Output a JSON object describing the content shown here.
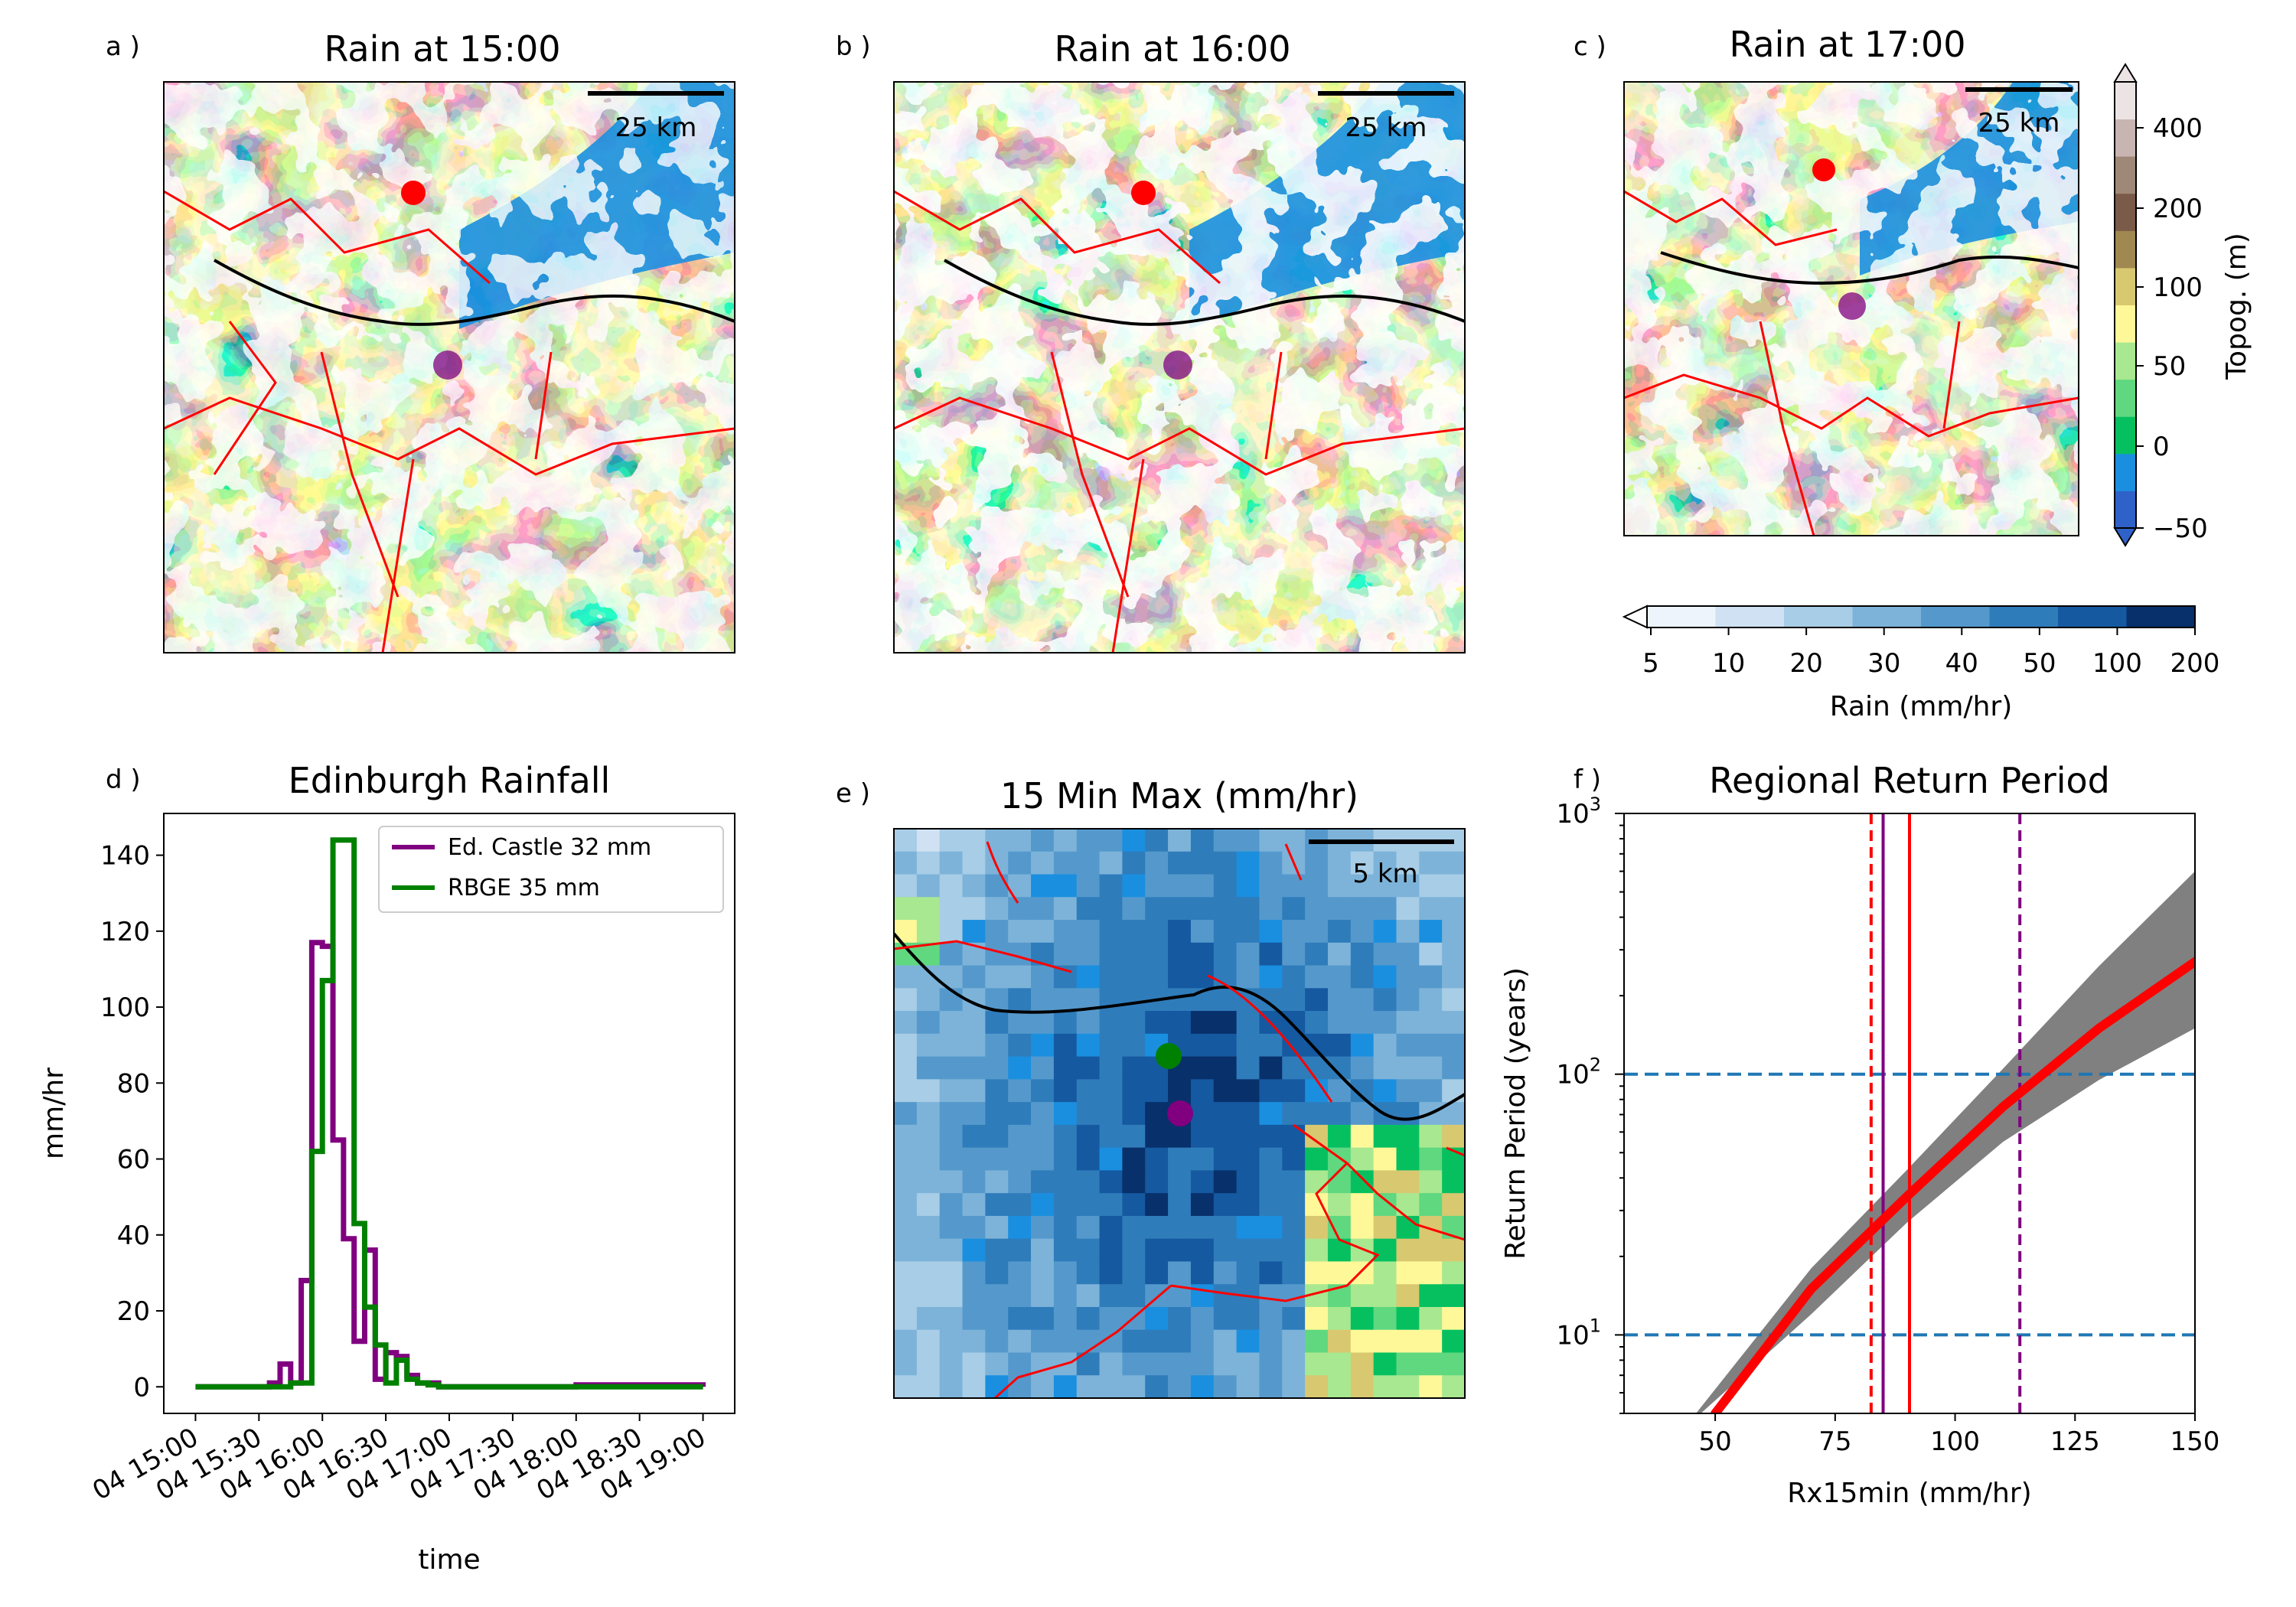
{
  "panels": [
    {
      "id": "a",
      "letter": "a )",
      "title": "Rain at 15:00",
      "scalebar": "25 km"
    },
    {
      "id": "b",
      "letter": "b )",
      "title": "Rain at 16:00",
      "scalebar": "25 km"
    },
    {
      "id": "c",
      "letter": "c )",
      "title": "Rain at 17:00",
      "scalebar": "25 km"
    },
    {
      "id": "d",
      "letter": "d )",
      "title": "Edinburgh Rainfall"
    },
    {
      "id": "e",
      "letter": "e )",
      "title": "15 Min Max (mm/hr)",
      "scalebar": "5 km"
    },
    {
      "id": "f",
      "letter": "f )",
      "title": "Regional Return Period"
    }
  ],
  "colors": {
    "purple": "#800080",
    "green": "#008000",
    "red": "#ff0000",
    "blue_dash": "#1f77b4",
    "band": "#808080",
    "coast": "#000000"
  },
  "topo_colorbar": {
    "label": "Topog. (m)",
    "ticks": [
      "400",
      "200",
      "100",
      "50",
      "0",
      "−50"
    ],
    "colors": [
      "#2f62c8",
      "#1a8fe0",
      "#06c060",
      "#5fd880",
      "#a8e890",
      "#fff898",
      "#d8c870",
      "#a08850",
      "#7a5a48",
      "#a08878",
      "#c8b4b0",
      "#ece4e4"
    ]
  },
  "rain_colorbar": {
    "label": "Rain (mm/hr)",
    "ticks": [
      "5",
      "10",
      "20",
      "30",
      "40",
      "50",
      "100",
      "200"
    ],
    "colors": [
      "#eef4fb",
      "#cfe1f2",
      "#a8cde6",
      "#7db3d9",
      "#5599cc",
      "#2f7cbb",
      "#1559a0",
      "#08306b"
    ]
  },
  "chart_data": [
    {
      "type": "line",
      "panel": "d",
      "title": "Edinburgh Rainfall",
      "xlabel": "time",
      "ylabel": "mm/hr",
      "ylim": [
        -7,
        151
      ],
      "yticks": [
        0,
        20,
        40,
        60,
        80,
        100,
        120,
        140
      ],
      "xticks": [
        "04 15:00",
        "04 15:30",
        "04 16:00",
        "04 16:30",
        "04 17:00",
        "04 17:30",
        "04 18:00",
        "04 18:30",
        "04 19:00"
      ],
      "x_unit": "minutes after 04 15:00",
      "xlim": [
        -15,
        255
      ],
      "legend_position": "top-right",
      "series": [
        {
          "name": "Ed. Castle  32 mm",
          "color": "#800080",
          "x": [
            0,
            30,
            35,
            40,
            45,
            50,
            55,
            60,
            65,
            70,
            75,
            80,
            85,
            90,
            95,
            100,
            105,
            110,
            115,
            120,
            125,
            180,
            240
          ],
          "y": [
            0,
            0,
            1,
            6,
            1,
            28,
            117,
            116,
            65,
            39,
            12,
            36,
            2,
            9,
            8,
            3,
            1,
            1,
            0,
            0,
            0,
            0.5,
            0
          ]
        },
        {
          "name": "RBGE  35 mm",
          "color": "#008000",
          "x": [
            0,
            45,
            50,
            55,
            60,
            65,
            70,
            75,
            80,
            85,
            90,
            95,
            100,
            105,
            110,
            115,
            120,
            240
          ],
          "y": [
            0,
            1,
            1,
            62,
            107,
            144,
            144,
            43,
            21,
            11,
            1,
            7,
            2,
            1,
            0.5,
            0,
            0,
            0
          ]
        }
      ]
    },
    {
      "type": "line",
      "panel": "f",
      "title": "Regional Return Period",
      "xlabel": "Rx15min (mm/hr)",
      "ylabel": "Return Period (years)",
      "y_scale": "log",
      "xlim": [
        31,
        150
      ],
      "ylim": [
        5,
        1000
      ],
      "xticks": [
        50,
        75,
        100,
        125,
        150
      ],
      "yticks": [
        "10^1",
        "10^2",
        "10^3"
      ],
      "fit": {
        "x": [
          50,
          70,
          90,
          110,
          130,
          150
        ],
        "y": [
          5,
          15,
          34,
          75,
          150,
          270
        ]
      },
      "band_lower": {
        "x": [
          47,
          70,
          90,
          110,
          130,
          150
        ],
        "y": [
          5,
          12,
          27,
          55,
          95,
          150
        ]
      },
      "band_upper": {
        "x": [
          46,
          70,
          90,
          110,
          130,
          150
        ],
        "y": [
          5,
          18,
          43,
          105,
          260,
          600
        ]
      },
      "hlines": [
        10,
        100
      ],
      "vlines": [
        {
          "x": 82.5,
          "color": "#ff0000",
          "style": "dashed"
        },
        {
          "x": 85,
          "color": "#800080",
          "style": "solid"
        },
        {
          "x": 90.5,
          "color": "#ff0000",
          "style": "solid"
        },
        {
          "x": 113.5,
          "color": "#800080",
          "style": "dashed"
        }
      ]
    }
  ]
}
